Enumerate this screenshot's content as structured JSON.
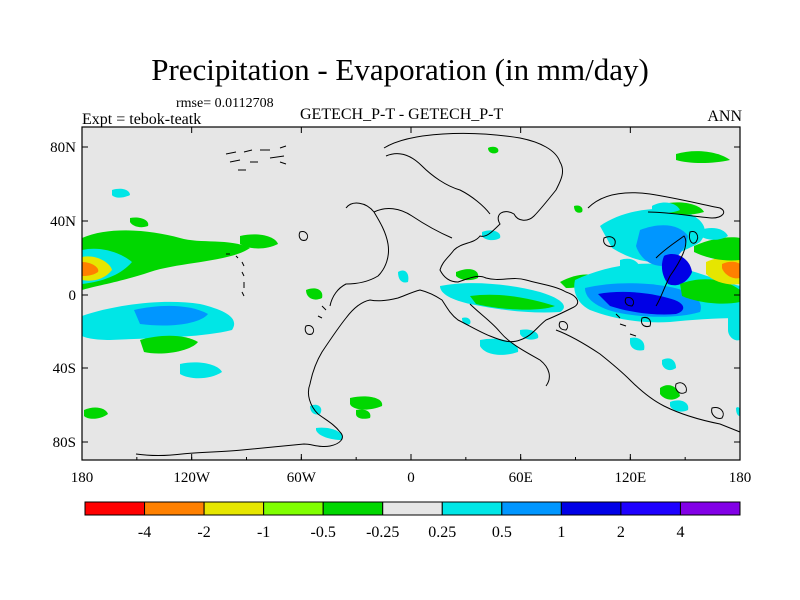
{
  "title": "Precipitation - Evaporation (in mm/day)",
  "rmse_label": "rmse= 0.0112708",
  "experiment_label": "Expt = tebok-teatk",
  "center_label": "GETECH_P-T - GETECH_P-T",
  "season_label": "ANN",
  "lat_ticks": [
    "80N",
    "40N",
    "0",
    "40S",
    "80S"
  ],
  "lon_ticks": [
    "180",
    "120W",
    "60W",
    "0",
    "60E",
    "120E",
    "180"
  ],
  "colorbar": {
    "labels": [
      "-4",
      "-2",
      "-1",
      "-0.5",
      "-0.25",
      "0.25",
      "0.5",
      "1",
      "2",
      "4"
    ],
    "colors": [
      "#ff0000",
      "#ff8000",
      "#e6e600",
      "#80ff00",
      "#00d700",
      "#e6e6e6",
      "#00e6e6",
      "#0096ff",
      "#0000e6",
      "#1e00ff",
      "#8200e6"
    ]
  },
  "colors": {
    "map_background": "#e6e6e6",
    "coastline": "#000000"
  }
}
